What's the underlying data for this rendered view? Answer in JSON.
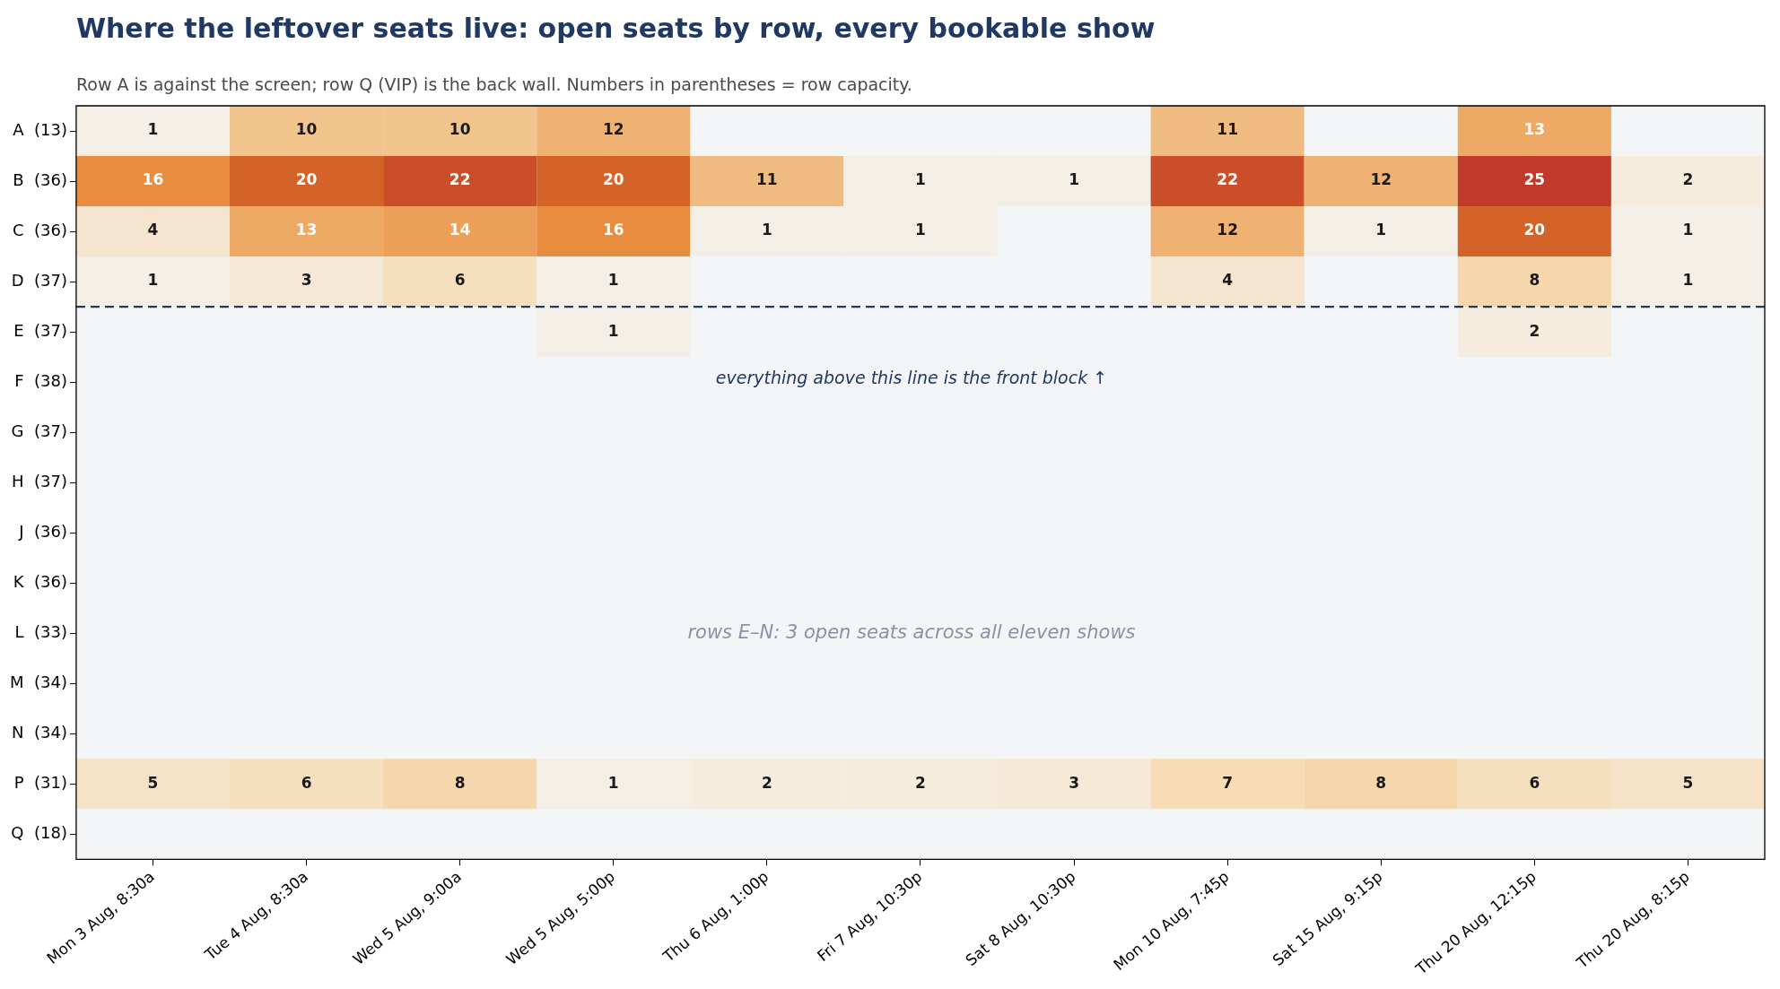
{
  "chart_data": {
    "type": "heatmap",
    "title": "Where the leftover seats live: open seats by row, every bookable show",
    "subtitle": "Row A is against the screen; row Q (VIP) is the back wall. Numbers in parentheses = row capacity.",
    "categories": [
      "Mon 3 Aug, 8:30a",
      "Tue 4 Aug, 8:30a",
      "Wed 5 Aug, 9:00a",
      "Wed 5 Aug, 5:00p",
      "Thu 6 Aug, 1:00p",
      "Fri 7 Aug, 10:30p",
      "Sat 8 Aug, 10:30p",
      "Mon 10 Aug, 7:45p",
      "Sat 15 Aug, 9:15p",
      "Thu 20 Aug, 12:15p",
      "Thu 20 Aug, 8:15p"
    ],
    "y_categories": [
      "A  (13)",
      "B  (36)",
      "C  (36)",
      "D  (37)",
      "E  (37)",
      "F  (38)",
      "G  (37)",
      "H  (37)",
      "J  (36)",
      "K  (36)",
      "L  (33)",
      "M  (34)",
      "N  (34)",
      "P  (31)",
      "Q  (18)"
    ],
    "cells": [
      [
        1,
        10,
        10,
        12,
        null,
        null,
        null,
        11,
        null,
        13,
        null
      ],
      [
        16,
        20,
        22,
        20,
        11,
        1,
        1,
        22,
        12,
        25,
        2
      ],
      [
        4,
        13,
        14,
        16,
        1,
        1,
        null,
        12,
        1,
        20,
        1
      ],
      [
        1,
        3,
        6,
        1,
        null,
        null,
        null,
        4,
        null,
        8,
        1
      ],
      [
        null,
        null,
        null,
        1,
        null,
        null,
        null,
        null,
        null,
        2,
        null
      ],
      [
        null,
        null,
        null,
        null,
        null,
        null,
        null,
        null,
        null,
        null,
        null
      ],
      [
        null,
        null,
        null,
        null,
        null,
        null,
        null,
        null,
        null,
        null,
        null
      ],
      [
        null,
        null,
        null,
        null,
        null,
        null,
        null,
        null,
        null,
        null,
        null
      ],
      [
        null,
        null,
        null,
        null,
        null,
        null,
        null,
        null,
        null,
        null,
        null
      ],
      [
        null,
        null,
        null,
        null,
        null,
        null,
        null,
        null,
        null,
        null,
        null
      ],
      [
        null,
        null,
        null,
        null,
        null,
        null,
        null,
        null,
        null,
        null,
        null
      ],
      [
        null,
        null,
        null,
        null,
        null,
        null,
        null,
        null,
        null,
        null,
        null
      ],
      [
        null,
        null,
        null,
        null,
        null,
        null,
        null,
        null,
        null,
        null,
        null
      ],
      [
        5,
        6,
        8,
        1,
        2,
        2,
        3,
        7,
        8,
        6,
        5
      ],
      [
        null,
        null,
        null,
        null,
        null,
        null,
        null,
        null,
        null,
        null,
        null
      ]
    ],
    "data_labels": true,
    "ref_lines": [
      {
        "axis": "y",
        "value": "E  (37)",
        "label": "everything above this line is the front block ↑",
        "color": "#1f3864",
        "line_style": "dashed"
      }
    ],
    "annotations": [
      {
        "text": "rows E–N: 3 open seats across all eleven shows"
      }
    ]
  }
}
